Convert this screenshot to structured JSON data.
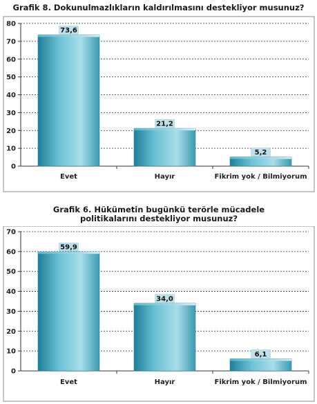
{
  "chart_data": [
    {
      "type": "bar",
      "title": "Grafik 8. Dokunulmazlıkların kaldırılmasını destekliyor musunuz?",
      "categories": [
        "Evet",
        "Hayır",
        "Fikrim yok / Bilmiyorum"
      ],
      "values": [
        73.6,
        21.2,
        5.2
      ],
      "data_labels": [
        "73,6",
        "21,2",
        "5,2"
      ],
      "ylim": [
        0,
        80
      ],
      "yticks": [
        0,
        10,
        20,
        30,
        40,
        50,
        60,
        70,
        80
      ],
      "grid": true,
      "bar_color": "#4aa8c0",
      "label_bg": "#bfe0ea"
    },
    {
      "type": "bar",
      "title": "Grafik 6. Hükümetin bugünkü terörle mücadele politikalarını destekliyor musunuz?",
      "categories": [
        "Evet",
        "Hayır",
        "Fikrim yok / Bilmiyorum"
      ],
      "values": [
        59.9,
        34.0,
        6.1
      ],
      "data_labels": [
        "59,9",
        "34,0",
        "6,1"
      ],
      "ylim": [
        0,
        70
      ],
      "yticks": [
        0,
        10,
        20,
        30,
        40,
        50,
        60,
        70
      ],
      "grid": true,
      "bar_color": "#4aa8c0",
      "label_bg": "#bfe0ea"
    }
  ]
}
